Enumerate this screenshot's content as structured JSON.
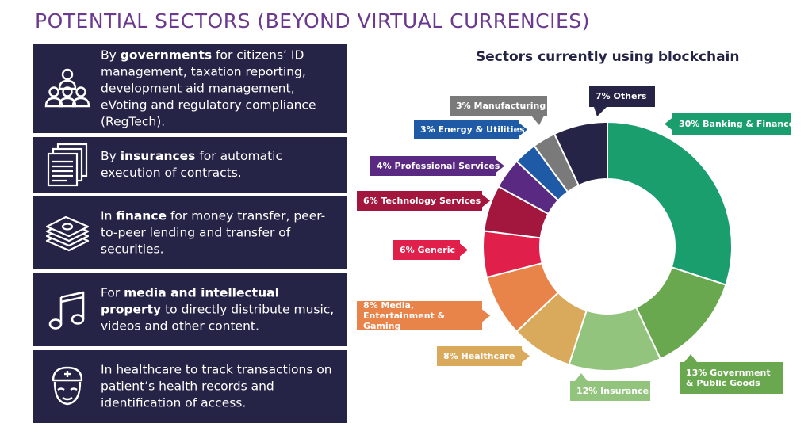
{
  "page": {
    "title": "POTENTIAL SECTORS (BEYOND VIRTUAL CURRENCIES)"
  },
  "cards": [
    {
      "icon": "people-group-icon",
      "pre": "By ",
      "bold": "governments",
      "post": " for citizens’ ID management, taxation reporting, development aid management, eVoting and regulatory compliance (RegTech)."
    },
    {
      "icon": "documents-stack-icon",
      "pre": "By ",
      "bold": "insurances",
      "post": " for automatic execution of contracts."
    },
    {
      "icon": "money-stack-icon",
      "pre": "In ",
      "bold": "finance",
      "post": " for money transfer, peer-to-peer lending and transfer of securities."
    },
    {
      "icon": "music-note-icon",
      "pre": "For ",
      "bold": "media and intellectual property",
      "post": " to directly distribute music, videos and other content."
    },
    {
      "icon": "nurse-icon",
      "pre": "",
      "bold": "",
      "post": "In healthcare to track transactions on patient’s health records and identification of access."
    }
  ],
  "chart_data": {
    "type": "pie",
    "title": "Sectors currently using blockchain",
    "slices": [
      {
        "label": "30% Banking & Finance",
        "value": 30,
        "color": "#1a9e6e"
      },
      {
        "label": "13% Government & Public Goods",
        "value": 13,
        "color": "#6aa84f"
      },
      {
        "label": "12% Insurance",
        "value": 12,
        "color": "#93c47d"
      },
      {
        "label": "8% Healthcare",
        "value": 8,
        "color": "#d9a95c"
      },
      {
        "label": "8% Media, Entertainment & Gaming",
        "value": 8,
        "color": "#e8834a"
      },
      {
        "label": "6% Generic",
        "value": 6,
        "color": "#e0204a"
      },
      {
        "label": "6% Technology Services",
        "value": 6,
        "color": "#a3173f"
      },
      {
        "label": "4% Professional Services",
        "value": 4,
        "color": "#5a2a82"
      },
      {
        "label": "3% Energy & Utilities",
        "value": 3,
        "color": "#1f5aa6"
      },
      {
        "label": "3% Manufacturing",
        "value": 3,
        "color": "#7a7a7a"
      },
      {
        "label": "7% Others",
        "value": 7,
        "color": "#252447"
      }
    ]
  }
}
